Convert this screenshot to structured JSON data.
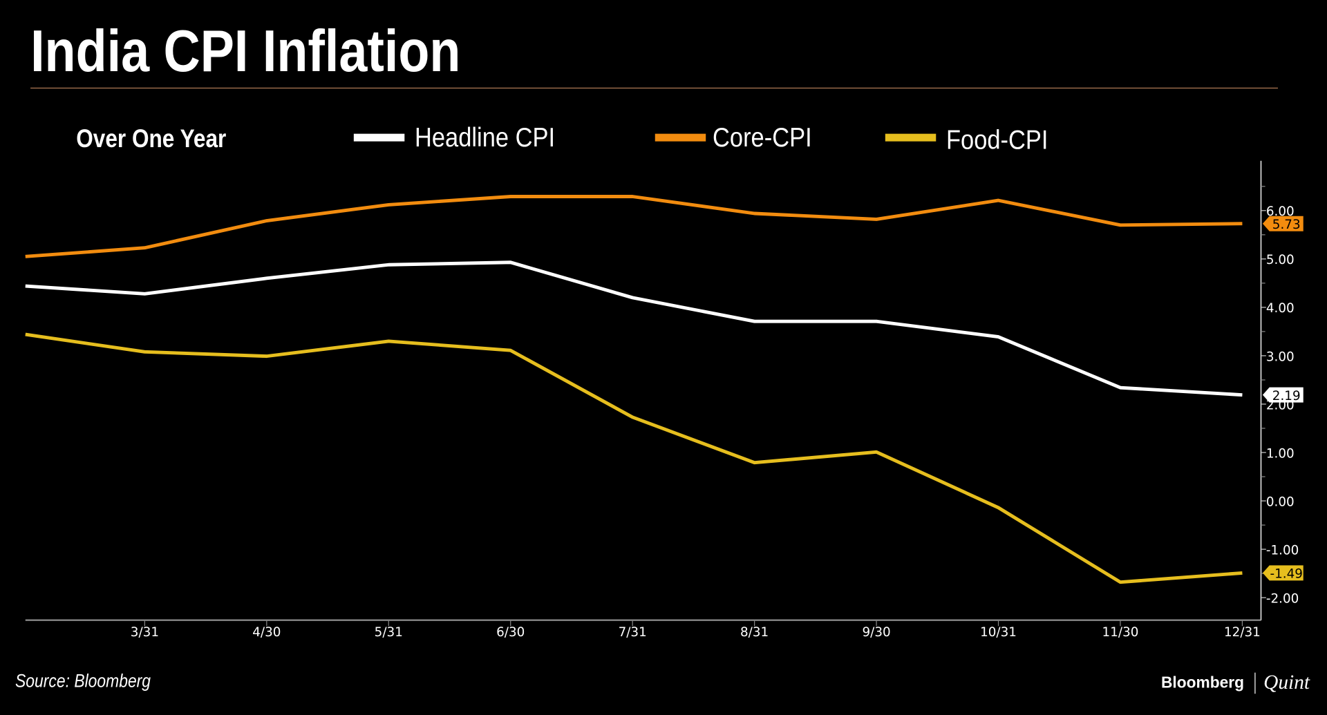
{
  "title": "India CPI Inflation",
  "subtitle": "Over One Year",
  "source": "Source: Bloomberg",
  "logo": {
    "brand": "Bloomberg",
    "sub": "Quint"
  },
  "chart_data": {
    "type": "line",
    "title": "India CPI Inflation",
    "subtitle": "Over One Year",
    "x": [
      "",
      "3/31",
      "4/30",
      "5/31",
      "6/30",
      "7/31",
      "8/31",
      "9/30",
      "10/31",
      "11/30",
      "12/31"
    ],
    "yticks": [
      "-2.00",
      "-1.00",
      "0.00",
      "1.00",
      "2.00",
      "3.00",
      "4.00",
      "5.00",
      "6.00"
    ],
    "ylim": [
      -2.5,
      7.2
    ],
    "y_axis_side": "right",
    "grid": false,
    "legend_position": "top",
    "series": [
      {
        "name": "Headline CPI",
        "color": "#ffffff",
        "last_label": "2.19",
        "label_text_color": "#000000",
        "values": [
          4.44,
          4.28,
          4.6,
          4.88,
          4.93,
          4.2,
          3.71,
          3.71,
          3.39,
          2.34,
          2.19
        ]
      },
      {
        "name": "Core-CPI",
        "color": "#f28c0f",
        "last_label": "5.73",
        "label_text_color": "#000000",
        "values": [
          5.05,
          5.23,
          5.79,
          6.12,
          6.29,
          6.29,
          5.94,
          5.82,
          6.21,
          5.7,
          5.73
        ]
      },
      {
        "name": "Food-CPI",
        "color": "#e6be1e",
        "last_label": "-1.49",
        "label_text_color": "#000000",
        "values": [
          3.44,
          3.08,
          2.99,
          3.3,
          3.11,
          1.73,
          0.79,
          1.01,
          -0.14,
          -1.68,
          -1.49
        ]
      }
    ]
  }
}
